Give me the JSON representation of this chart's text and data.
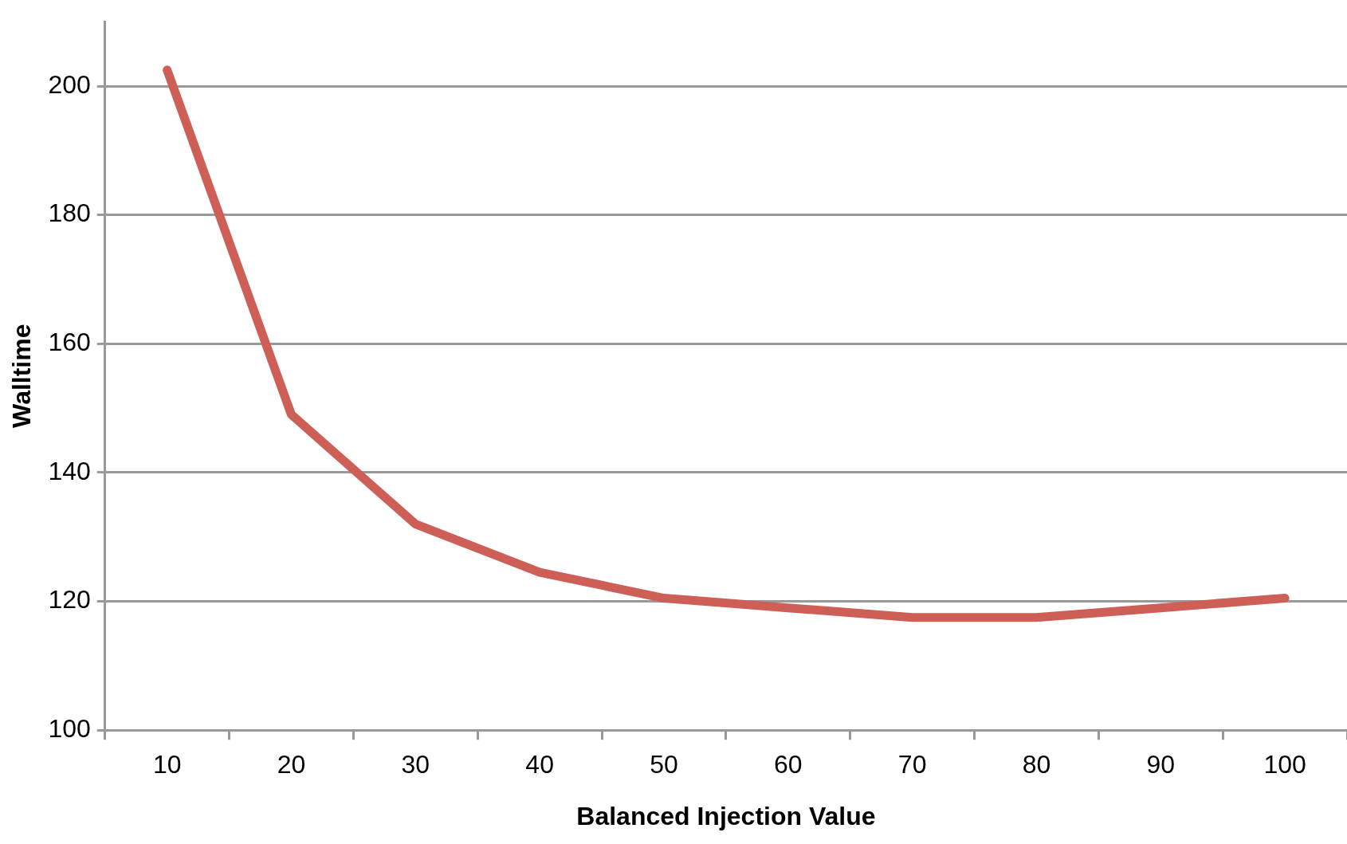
{
  "chart_data": {
    "type": "line",
    "xlabel": "Balanced Injection Value",
    "ylabel": "Walltime",
    "categories": [
      "10",
      "20",
      "30",
      "40",
      "50",
      "60",
      "70",
      "80",
      "90",
      "100"
    ],
    "series": [
      {
        "color": "#cd5f57",
        "values": [
          202.5,
          149,
          132,
          124.5,
          120.5,
          119,
          117.5,
          117.5,
          119,
          120.5
        ]
      }
    ],
    "ylim": [
      100,
      210
    ],
    "yticks": [
      100,
      120,
      140,
      160,
      180,
      200
    ],
    "grid": "y",
    "legend": false,
    "marker": "none",
    "line_style": "solid"
  }
}
